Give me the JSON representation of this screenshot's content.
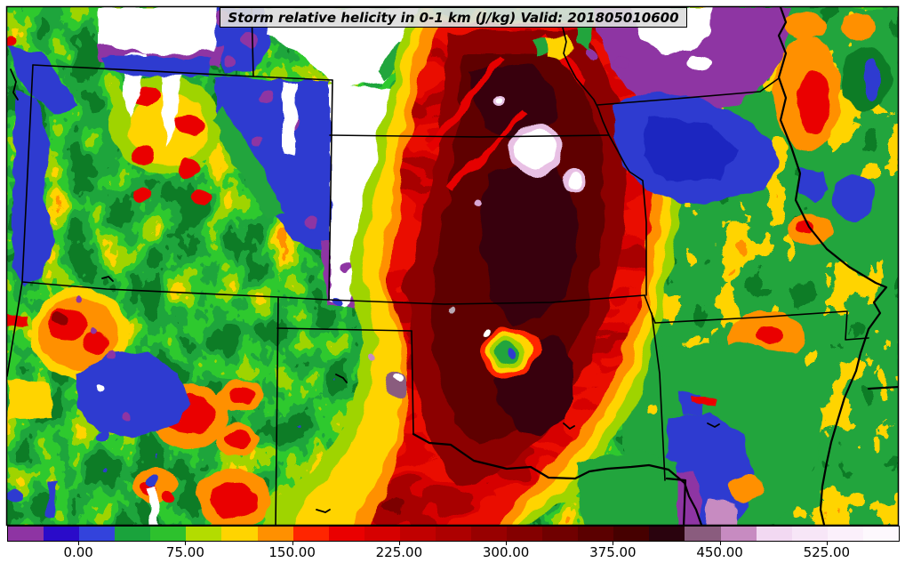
{
  "title": {
    "text": "Storm relative helicity in 0-1 km (J/kg) Valid: 201805010600"
  },
  "colorbar": {
    "min_value": -50,
    "max_value": 575,
    "segment_step": 25,
    "segment_colors": [
      "#8e34a3",
      "#2a0bc9",
      "#3343dc",
      "#1aa33c",
      "#2dc12d",
      "#b3dc00",
      "#ffd400",
      "#ff9000",
      "#ff2500",
      "#ea0000",
      "#d60000",
      "#c10000",
      "#ad0000",
      "#980000",
      "#840000",
      "#700000",
      "#5b0000",
      "#460000",
      "#2a030e",
      "#8a5c7e",
      "#c78bc1",
      "#f2d9f2",
      "#f7e6f7",
      "#fbf0fb",
      "#fdf8fd"
    ],
    "ticks": [
      {
        "value": 0,
        "label": "0.00"
      },
      {
        "value": 75,
        "label": "75.00"
      },
      {
        "value": 150,
        "label": "150.00"
      },
      {
        "value": 225,
        "label": "225.00"
      },
      {
        "value": 300,
        "label": "300.00"
      },
      {
        "value": 375,
        "label": "375.00"
      },
      {
        "value": 450,
        "label": "450.00"
      },
      {
        "value": 525,
        "label": "525.00"
      }
    ]
  },
  "map": {
    "description": "Filled contour field of storm relative helicity over the central United States",
    "border_color": "#000000",
    "offscale_high_color": "#ffffff"
  }
}
